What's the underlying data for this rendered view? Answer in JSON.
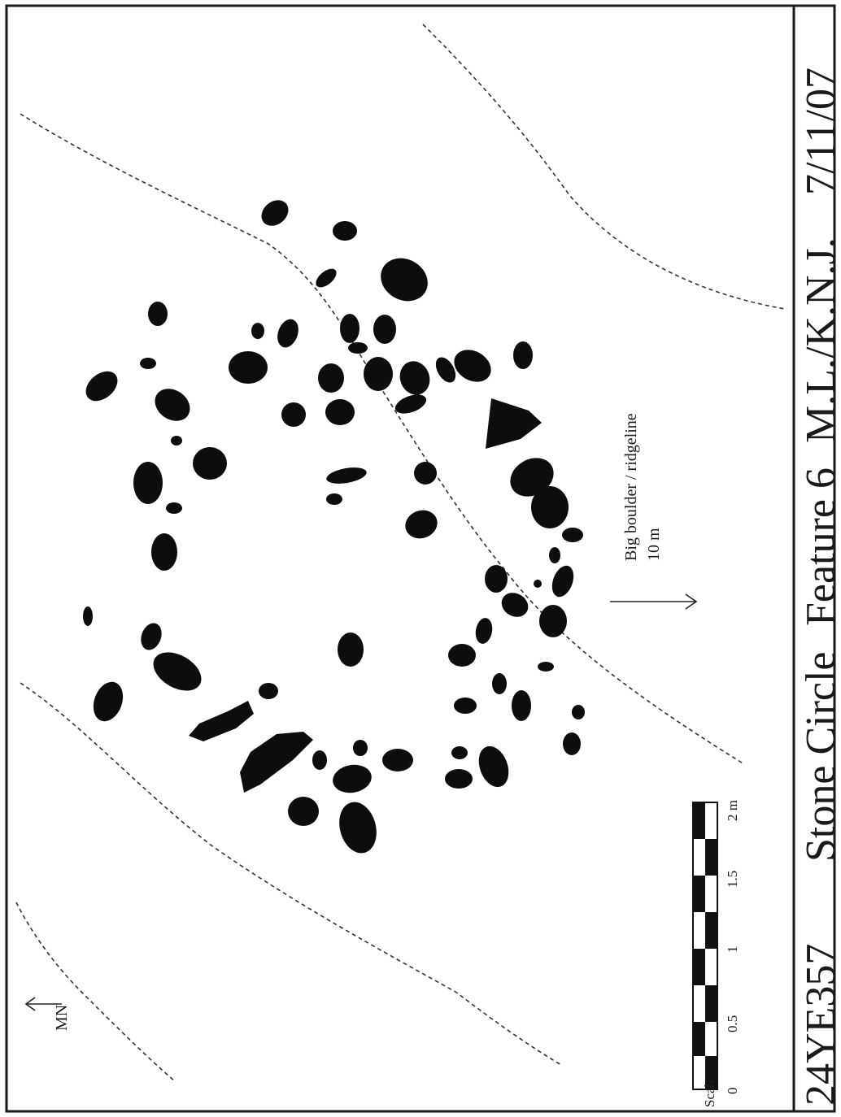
{
  "title_block": {
    "site_number": "24YE357",
    "feature_type": "Stone Circle",
    "feature_number": "Feature 6",
    "recorders": "M.L./K.N.J.",
    "date": "7/11/07"
  },
  "north_arrow": {
    "label": "MN"
  },
  "scale_bar": {
    "label": "Scale",
    "ticks": [
      "0",
      "0.5",
      "1",
      "1.5",
      "2 m"
    ]
  },
  "direction_note": {
    "line1": "Big boulder / ridgeline",
    "line2": "10 m"
  },
  "colors": {
    "ink": "#0d0d0d",
    "paper": "#ffffff"
  }
}
